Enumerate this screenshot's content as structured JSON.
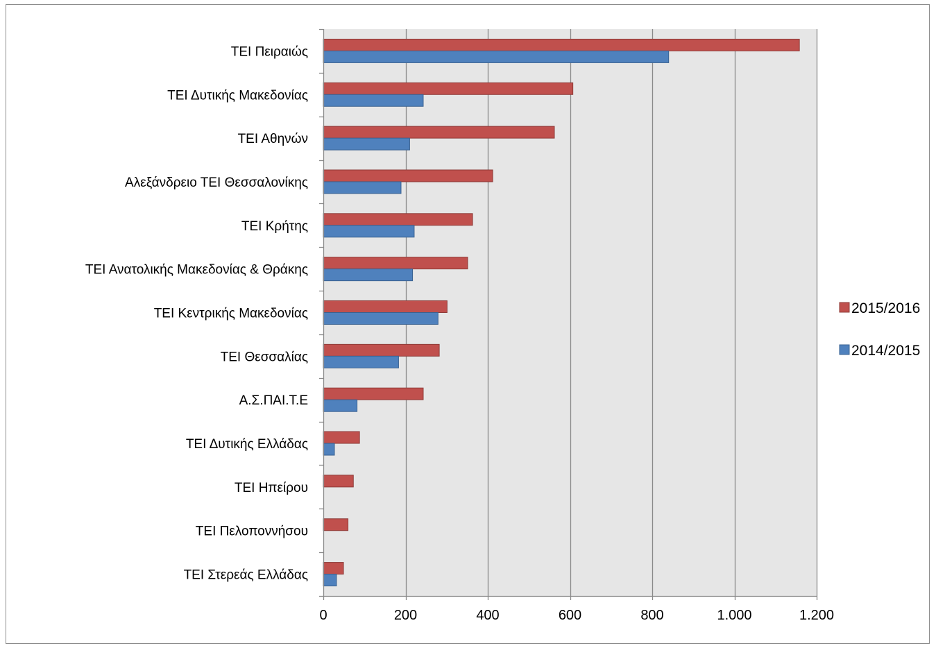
{
  "chart_data": {
    "type": "bar",
    "orientation": "horizontal",
    "categories": [
      "ΤΕΙ Πειραιώς",
      "ΤΕΙ Δυτικής Μακεδονίας",
      "ΤΕΙ Αθηνών",
      "Αλεξάνδρειο ΤΕΙ Θεσσαλονίκης",
      "ΤΕΙ Κρήτης",
      "ΤΕΙ Ανατολικής Μακεδονίας & Θράκης",
      "ΤΕΙ Κεντρικής Μακεδονίας",
      "ΤΕΙ Θεσσαλίας",
      "Α.Σ.ΠΑΙ.Τ.Ε",
      "ΤΕΙ Δυτικής Ελλάδας",
      "ΤΕΙ Ηπείρου",
      "ΤΕΙ Πελοποννήσου",
      "ΤΕΙ Στερεάς Ελλάδας"
    ],
    "series": [
      {
        "name": "2015/2016",
        "color": "#c0504d",
        "values": [
          1158,
          607,
          562,
          412,
          363,
          351,
          301,
          282,
          243,
          88,
          73,
          60,
          49
        ]
      },
      {
        "name": "2014/2015",
        "color": "#4f81bd",
        "values": [
          840,
          243,
          210,
          189,
          221,
          217,
          279,
          183,
          82,
          27,
          0,
          0,
          32
        ]
      }
    ],
    "xlim": [
      0,
      1200
    ],
    "xticks": [
      0,
      200,
      400,
      600,
      800,
      1000,
      1200
    ],
    "xtick_labels": [
      "0",
      "200",
      "400",
      "600",
      "800",
      "1.000",
      "1.200"
    ],
    "grid": true,
    "plot_background": "#e6e6e6",
    "legend_position": "right"
  }
}
